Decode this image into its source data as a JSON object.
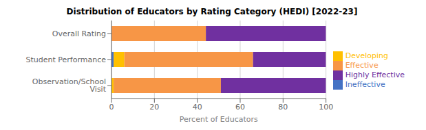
{
  "chart_data": {
    "type": "bar",
    "orientation": "horizontal",
    "stacked": true,
    "title": "Distribution of Educators by Rating Category (HEDI) [2022-23]",
    "categories": [
      "Overall Rating",
      "Student Performance",
      "Observation/School Visit"
    ],
    "series": [
      {
        "name": "Ineffective",
        "color": "#4472C4",
        "values": [
          0,
          1,
          0
        ]
      },
      {
        "name": "Developing",
        "color": "#FFC000",
        "values": [
          0,
          5,
          1
        ]
      },
      {
        "name": "Effective",
        "color": "#F79646",
        "values": [
          44,
          60,
          50
        ]
      },
      {
        "name": "Highly Effective",
        "color": "#7030A0",
        "values": [
          56,
          34,
          49
        ]
      }
    ],
    "xlabel": "Percent of Educators",
    "xlim": [
      0,
      100
    ],
    "xticks": [
      0,
      20,
      40,
      60,
      80,
      100
    ],
    "grid": true,
    "legend": "right"
  }
}
